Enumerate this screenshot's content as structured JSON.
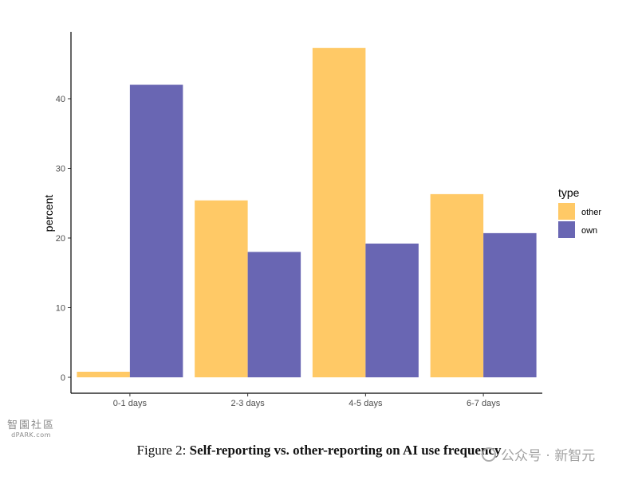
{
  "chart_data": {
    "type": "bar",
    "title": "",
    "xlabel": "",
    "ylabel": "percent",
    "categories": [
      "0-1 days",
      "2-3 days",
      "4-5 days",
      "6-7 days"
    ],
    "series": [
      {
        "name": "other",
        "values": [
          0.8,
          25.4,
          47.3,
          26.3
        ],
        "color": "#FFC966"
      },
      {
        "name": "own",
        "values": [
          42.0,
          18.0,
          19.2,
          20.7
        ],
        "color": "#6966B3"
      }
    ],
    "ylim": [
      0,
      49
    ],
    "yticks": [
      0,
      10,
      20,
      30,
      40
    ],
    "grid": false,
    "legend": {
      "title": "type",
      "position": "right"
    }
  },
  "caption": {
    "prefix": "Figure 2:",
    "text": "Self-reporting vs. other-reporting on AI use frequency"
  },
  "watermarks": {
    "left_line1": "智園社區",
    "left_line2": "dPARK.com",
    "right": "公众号 · 新智元"
  }
}
